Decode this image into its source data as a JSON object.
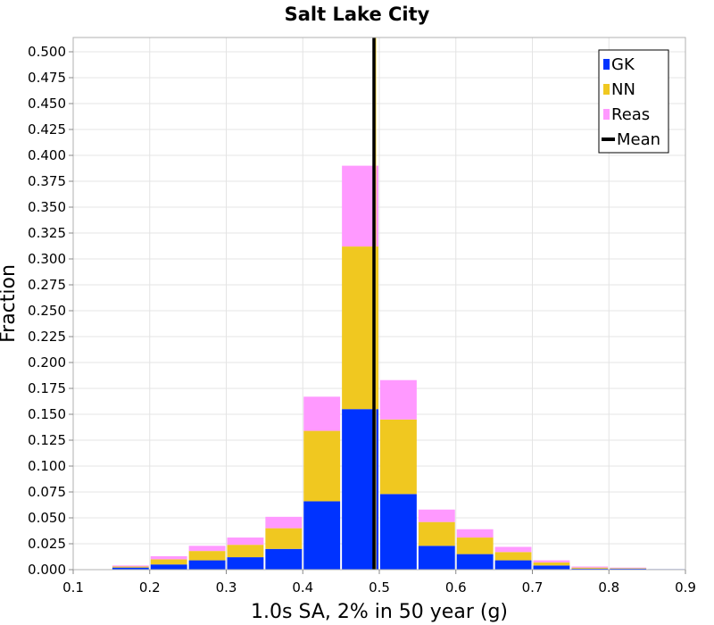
{
  "chart_data": {
    "type": "bar",
    "title": "Salt Lake City",
    "xlabel": "1.0s SA, 2% in 50 year (g)",
    "ylabel": "Fraction",
    "xlim": [
      0.1,
      0.9
    ],
    "ylim": [
      0,
      0.5
    ],
    "stacked": true,
    "bin_width": 0.05,
    "x": [
      0.175,
      0.225,
      0.275,
      0.325,
      0.375,
      0.425,
      0.475,
      0.525,
      0.575,
      0.625,
      0.675,
      0.725,
      0.775,
      0.825,
      0.875
    ],
    "series": [
      {
        "name": "GK",
        "color": "#0033ff",
        "values": [
          0.002,
          0.005,
          0.009,
          0.012,
          0.02,
          0.066,
          0.155,
          0.073,
          0.023,
          0.015,
          0.009,
          0.004,
          0.001,
          0.001,
          0.0005
        ]
      },
      {
        "name": "NN",
        "color": "#f0c820",
        "values": [
          0.001,
          0.005,
          0.009,
          0.012,
          0.02,
          0.068,
          0.157,
          0.072,
          0.023,
          0.016,
          0.008,
          0.003,
          0.001,
          0.0005,
          0.0
        ]
      },
      {
        "name": "Reas",
        "color": "#ff99ff",
        "values": [
          0.001,
          0.003,
          0.005,
          0.007,
          0.011,
          0.033,
          0.078,
          0.038,
          0.012,
          0.008,
          0.005,
          0.002,
          0.001,
          0.0005,
          0.0
        ]
      }
    ],
    "mean": {
      "name": "Mean",
      "x": 0.493,
      "color": "#000000"
    },
    "x_ticks": [
      "0.1",
      "0.2",
      "0.3",
      "0.4",
      "0.5",
      "0.6",
      "0.7",
      "0.8",
      "0.9"
    ],
    "y_ticks": [
      "0.000",
      "0.025",
      "0.050",
      "0.075",
      "0.100",
      "0.125",
      "0.150",
      "0.175",
      "0.200",
      "0.225",
      "0.250",
      "0.275",
      "0.300",
      "0.325",
      "0.350",
      "0.375",
      "0.400",
      "0.425",
      "0.450",
      "0.475",
      "0.500"
    ],
    "grid": true,
    "legend_position": "top-right"
  }
}
